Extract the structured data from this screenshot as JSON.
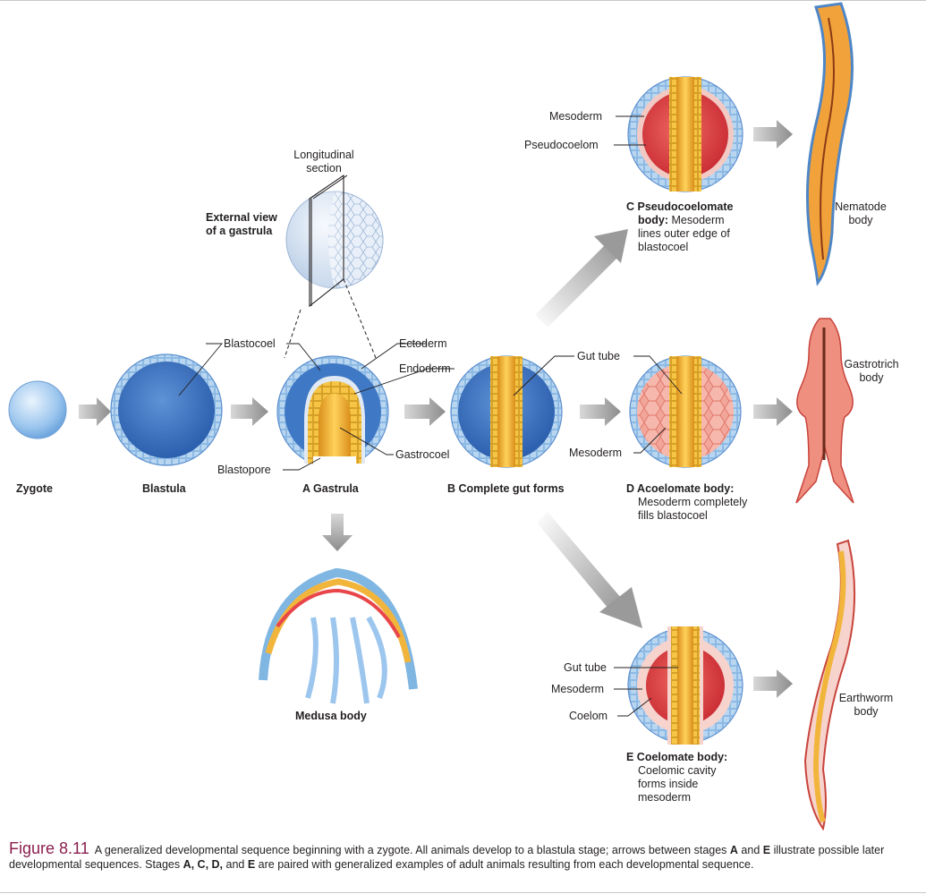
{
  "labels": {
    "longitudinal_section": "Longitudinal\nsection",
    "external_view": "External view\nof a gastrula",
    "blastocoel": "Blastocoel",
    "ectoderm": "Ectoderm",
    "endoderm": "Endoderm",
    "gastrocoel": "Gastrocoel",
    "blastopore": "Blastopore",
    "gut_tube_d": "Gut tube",
    "mesoderm_d": "Mesoderm",
    "mesoderm_c": "Mesoderm",
    "pseudocoelom": "Pseudocoelom",
    "gut_tube_e": "Gut tube",
    "mesoderm_e": "Mesoderm",
    "coelom": "Coelom",
    "nematode": "Nematode\nbody",
    "gastrotrich": "Gastrotrich\nbody",
    "earthworm": "Earthworm\nbody",
    "medusa": "Medusa body"
  },
  "stages": {
    "zygote": "Zygote",
    "blastula": "Blastula",
    "a_gastrula": "A Gastrula",
    "b_complete": "B Complete gut forms",
    "c_head": "C Pseudocoelomate",
    "c_head2": "body:",
    "c_rest": "Mesoderm",
    "c_rest2": "lines outer edge of",
    "c_rest3": "blastocoel",
    "d_head": "D Acoelomate body:",
    "d_rest": "Mesoderm completely",
    "d_rest2": "fills blastocoel",
    "e_head": "E Coelomate body:",
    "e_rest": "Coelomic cavity",
    "e_rest2": "forms inside",
    "e_rest3": "mesoderm"
  },
  "caption": {
    "figure": "Figure 8.11",
    "t1": "A generalized developmental sequence beginning with a zygote. All animals develop to a blastula stage; arrows between stages ",
    "a": "A",
    "t2": " and ",
    "e": "E",
    "t3": " illustrate possible later developmental sequences. Stages ",
    "acde": "A, C, D,",
    "t4": " and ",
    "e2": "E",
    "t5": " are paired with generalized examples of adult animals resulting from each developmental sequence."
  },
  "colors": {
    "ectoderm": "#a9cdeb",
    "blastocoel": "#3f78c4",
    "endoderm": "#f2b53c",
    "mesoderm": "#e8464a",
    "arrow": "#9a9a9a",
    "caption_figure": "#8a1f4f"
  }
}
